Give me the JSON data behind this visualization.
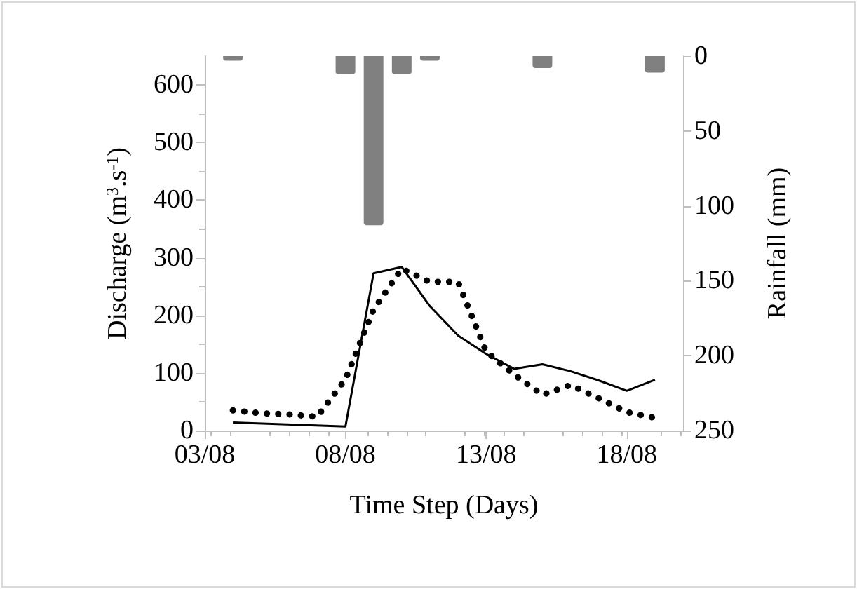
{
  "chart_data": {
    "type": "line",
    "xlabel": "Time Step (Days)",
    "ylabel": "Discharge (m$^{3}$.s$^{-1}$)",
    "y2label": "Rainfall (mm)",
    "x": [
      "--08-04",
      "--08-08",
      "--08-09",
      "--08-10",
      "--08-11",
      "--08-12",
      "--08-13",
      "--08-14",
      "--08-15",
      "--08-16",
      "--08-17",
      "--08-18",
      "--08-19"
    ],
    "series": [
      {
        "color": "#000000",
        "line_style": "solid",
        "values": [
          14,
          7,
          273,
          284,
          216,
          165,
          133,
          107,
          115,
          103,
          87,
          69,
          88
        ]
      },
      {
        "color": "#000000",
        "line_style": "dotted",
        "x": [
          "--08-04",
          "--08-05",
          "--08-06",
          "--08-07",
          "--08-08",
          "--08-09",
          "--08-10",
          "--08-11",
          "--08-12",
          "--08-13",
          "--08-14",
          "--08-15",
          "--08-16",
          "--08-17",
          "--08-18",
          "--08-19"
        ],
        "values": [
          35,
          30,
          28,
          24,
          89,
          210,
          281,
          258,
          258,
          137,
          97,
          62,
          79,
          56,
          32,
          22
        ]
      },
      {
        "type": "bar",
        "axis": "y2",
        "color": "#808080",
        "x": [
          "--08-04",
          "--08-08",
          "--08-09",
          "--08-10",
          "--08-11",
          "--08-15",
          "--08-19"
        ],
        "values": [
          3,
          12,
          113,
          12,
          3,
          8,
          11
        ]
      }
    ],
    "xlim": [
      "--08-03",
      "--08-20"
    ],
    "xticks": [
      {
        "value": "--08-03",
        "label": "03/08"
      },
      {
        "value": "--08-08",
        "label": "08/08"
      },
      {
        "value": "--08-13",
        "label": "13/08"
      },
      {
        "value": "--08-18",
        "label": "18/08"
      }
    ],
    "ylim": [
      0,
      650
    ],
    "yticks": [
      0,
      100,
      200,
      300,
      400,
      500,
      600
    ],
    "y2lim": [
      250,
      0
    ],
    "y2ticks": [
      0,
      50,
      100,
      150,
      200,
      250
    ],
    "grid": false,
    "marker": "none"
  }
}
